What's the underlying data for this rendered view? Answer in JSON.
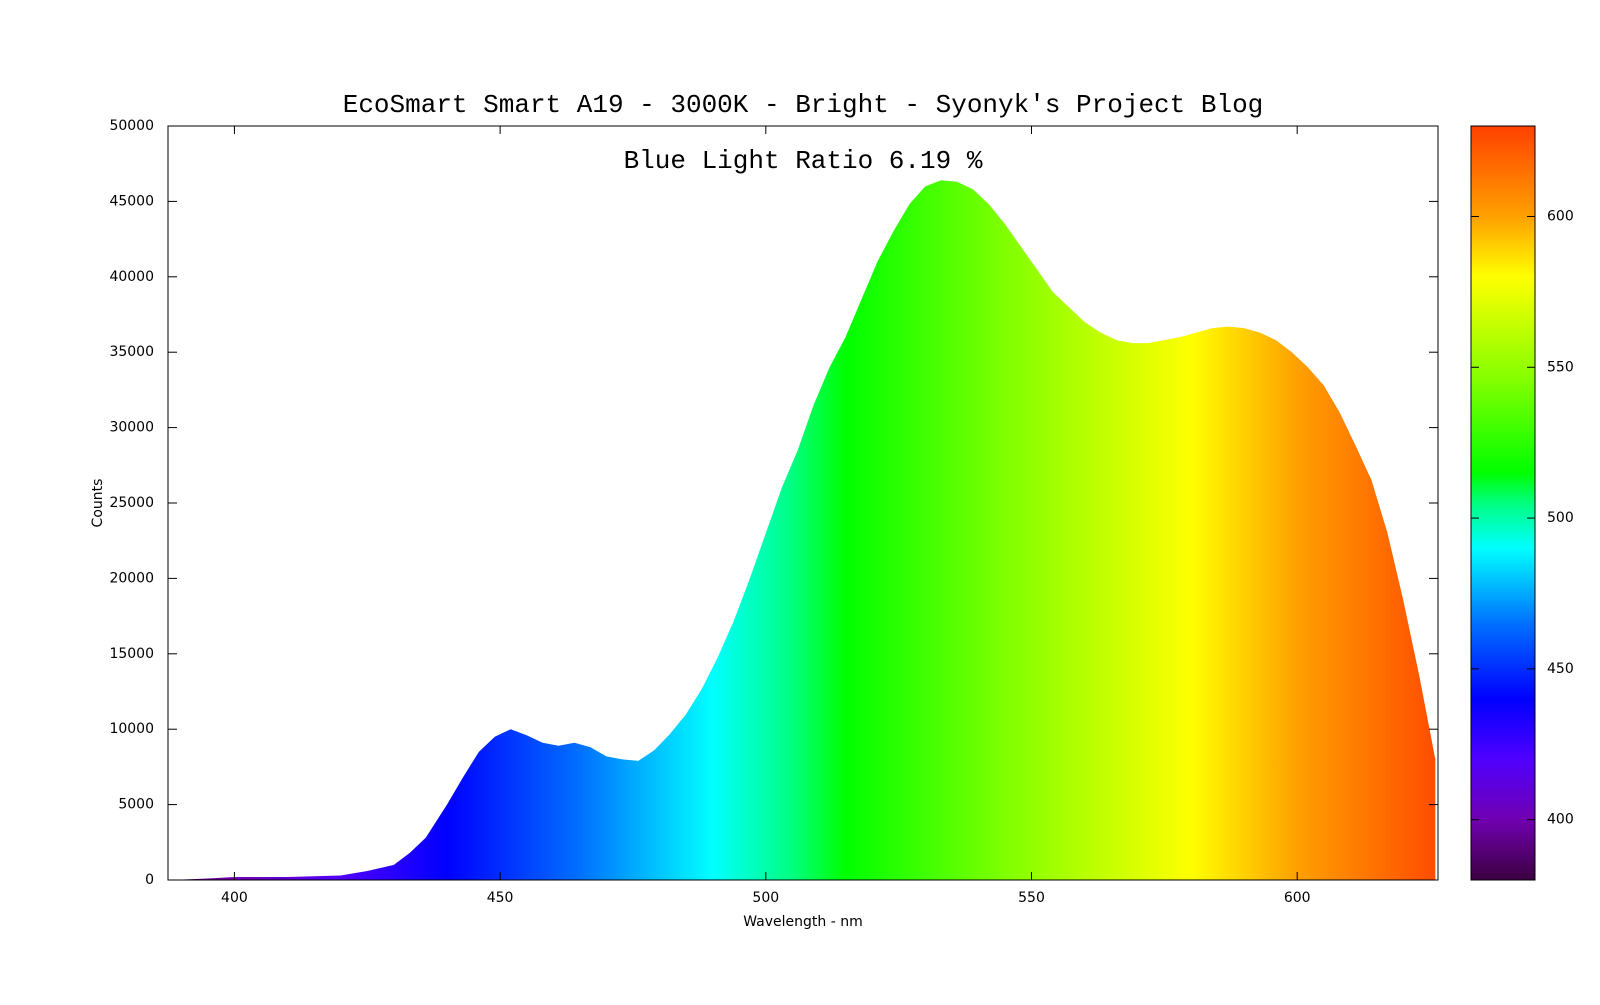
{
  "chart_data": {
    "type": "area",
    "title": "EcoSmart Smart A19 - 3000K - Bright - Syonyk's Project Blog",
    "annotation": "Blue Light Ratio 6.19 %",
    "xlabel": "Wavelength - nm",
    "ylabel": "Counts",
    "x": [
      388,
      395,
      400,
      410,
      420,
      425,
      430,
      433,
      436,
      440,
      443,
      446,
      449,
      452,
      455,
      458,
      461,
      464,
      467,
      470,
      473,
      476,
      479,
      482,
      485,
      488,
      491,
      494,
      497,
      500,
      503,
      506,
      509,
      512,
      515,
      518,
      521,
      524,
      527,
      530,
      533,
      536,
      539,
      542,
      545,
      548,
      551,
      554,
      557,
      560,
      563,
      566,
      569,
      572,
      575,
      578,
      581,
      584,
      587,
      590,
      593,
      596,
      599,
      602,
      605,
      608,
      611,
      614,
      617,
      620,
      623,
      626
    ],
    "values": [
      0,
      100,
      200,
      200,
      300,
      600,
      1000,
      1800,
      2800,
      5000,
      6800,
      8500,
      9500,
      10000,
      9600,
      9100,
      8900,
      9100,
      8800,
      8200,
      8000,
      7900,
      8600,
      9700,
      11000,
      12700,
      14800,
      17200,
      20000,
      23000,
      26000,
      28500,
      31500,
      34000,
      36000,
      38500,
      41000,
      43000,
      44800,
      46000,
      46400,
      46300,
      45800,
      44800,
      43500,
      42000,
      40500,
      39000,
      38000,
      37000,
      36300,
      35800,
      35600,
      35600,
      35800,
      36000,
      36300,
      36600,
      36700,
      36600,
      36300,
      35800,
      35000,
      34000,
      32800,
      31000,
      28800,
      26500,
      23000,
      18500,
      13500,
      8000
    ],
    "xlim": [
      387.5,
      626.5
    ],
    "xticks": [
      400,
      450,
      500,
      550,
      600
    ],
    "ylim": [
      0,
      50000
    ],
    "yticks": [
      0,
      5000,
      10000,
      15000,
      20000,
      25000,
      30000,
      35000,
      40000,
      45000,
      50000
    ],
    "colorbar_lim": [
      380,
      630
    ],
    "colorbar_ticks": [
      400,
      450,
      500,
      550,
      600
    ],
    "colorscale": [
      [
        380,
        "#3c0040"
      ],
      [
        400,
        "#7000b0"
      ],
      [
        420,
        "#5000ff"
      ],
      [
        440,
        "#0000ff"
      ],
      [
        465,
        "#0070ff"
      ],
      [
        490,
        "#00ffff"
      ],
      [
        505,
        "#00ff80"
      ],
      [
        515,
        "#00ff00"
      ],
      [
        545,
        "#80ff00"
      ],
      [
        580,
        "#ffff00"
      ],
      [
        600,
        "#ffa000"
      ],
      [
        630,
        "#ff4000"
      ]
    ]
  }
}
